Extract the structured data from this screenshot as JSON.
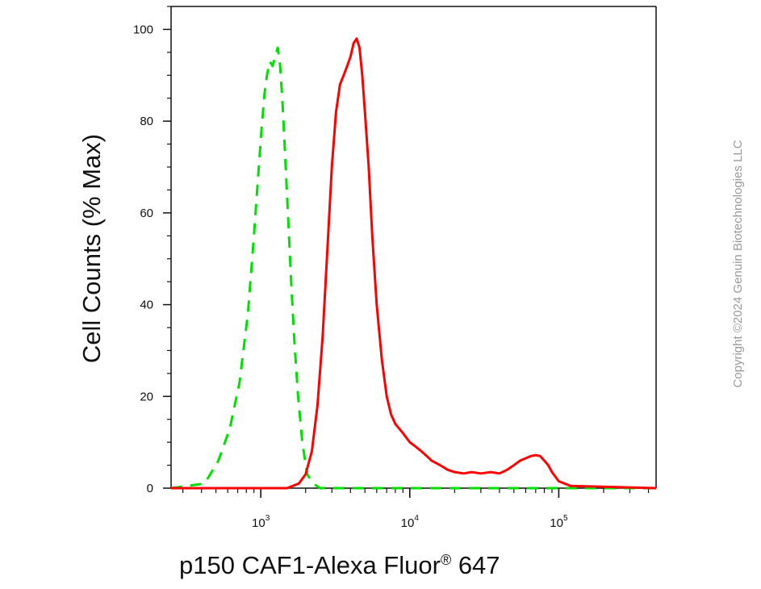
{
  "chart_data": {
    "type": "line",
    "xlabel_main": "p150 CAF1-Alexa Fluor",
    "xlabel_reg": "®",
    "xlabel_tail": " 647",
    "ylabel": "Cell Counts (% Max)",
    "x_scale": "log",
    "xlim": [
      250,
      450000
    ],
    "ylim": [
      0,
      105
    ],
    "y_ticks": [
      "0",
      "20",
      "40",
      "60",
      "80",
      "100"
    ],
    "x_ticks": [
      {
        "base": "10",
        "exp": "3",
        "value": 1000
      },
      {
        "base": "10",
        "exp": "4",
        "value": 10000
      },
      {
        "base": "10",
        "exp": "5",
        "value": 100000
      }
    ],
    "series": [
      {
        "color": "#00e000",
        "style": "dashed",
        "x": [
          250,
          420,
          520,
          620,
          720,
          820,
          900,
          960,
          1010,
          1060,
          1100,
          1150,
          1200,
          1250,
          1300,
          1350,
          1400,
          1460,
          1530,
          1600,
          1680,
          1780,
          1900,
          2050,
          2250,
          2500,
          3000,
          5000,
          10000,
          50000,
          450000
        ],
        "y": [
          0,
          1,
          6,
          13,
          23,
          38,
          55,
          68,
          78,
          86,
          90,
          93,
          92,
          94,
          96,
          92,
          84,
          72,
          58,
          45,
          32,
          20,
          10,
          3,
          1,
          0,
          0,
          0,
          0,
          0,
          0
        ]
      },
      {
        "color": "#ff0000",
        "style": "solid",
        "x": [
          250,
          1500,
          1800,
          2000,
          2200,
          2400,
          2600,
          2800,
          3000,
          3200,
          3400,
          3600,
          3800,
          4000,
          4200,
          4400,
          4600,
          4800,
          5000,
          5300,
          5600,
          6000,
          6500,
          7000,
          7500,
          8000,
          9000,
          10000,
          11000,
          12000,
          13000,
          14000,
          16000,
          18000,
          20000,
          23000,
          26000,
          30000,
          35000,
          40000,
          45000,
          50000,
          55000,
          60000,
          65000,
          70000,
          75000,
          80000,
          85000,
          90000,
          100000,
          120000,
          450000
        ],
        "y": [
          0,
          0,
          1,
          3,
          8,
          18,
          33,
          52,
          70,
          82,
          88,
          90,
          92,
          94,
          97,
          98,
          96,
          90,
          82,
          70,
          55,
          40,
          28,
          20,
          16,
          14,
          12,
          10,
          9,
          8,
          7,
          6,
          5,
          4,
          3.5,
          3.2,
          3.5,
          3.2,
          3.5,
          3.2,
          4,
          5,
          6,
          6.5,
          7,
          7.2,
          7,
          6,
          5,
          3.5,
          1.5,
          0.5,
          0
        ]
      }
    ]
  },
  "watermark": "Copyright ©2024 Genuin Biotechnologies LLC"
}
